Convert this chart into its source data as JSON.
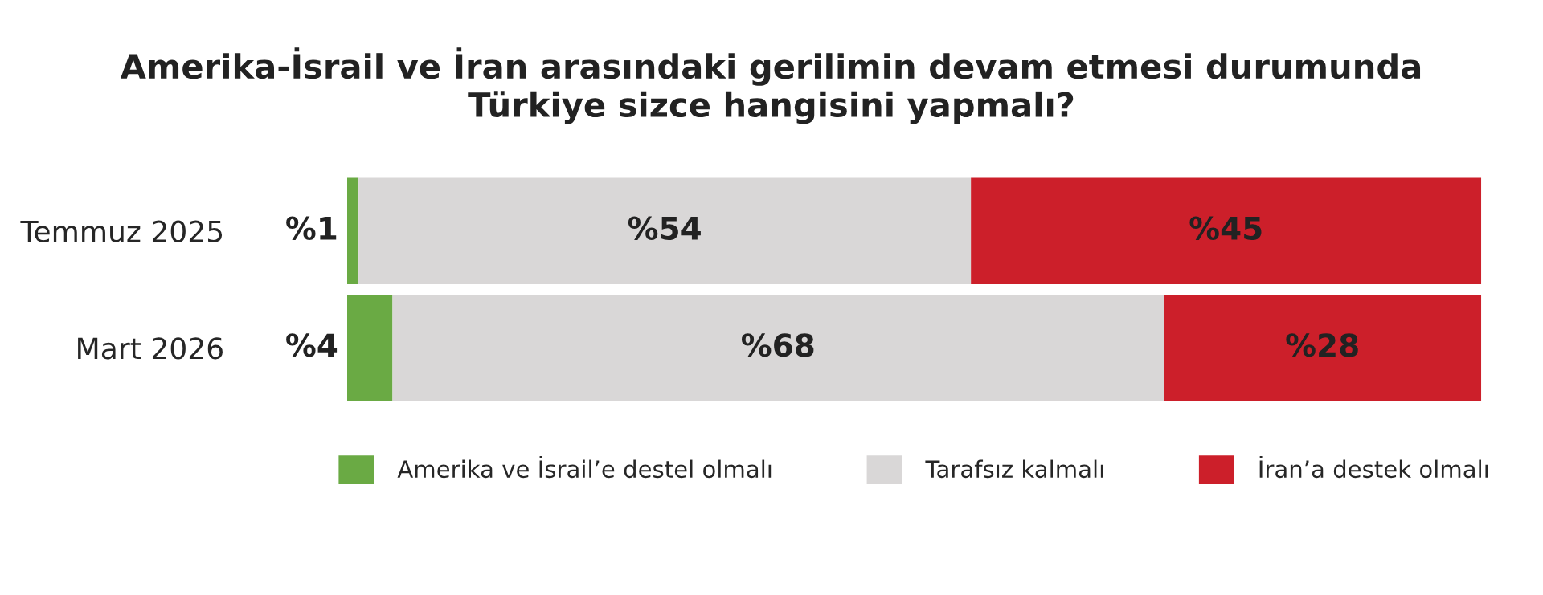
{
  "chart_data": {
    "type": "bar",
    "orientation": "horizontal",
    "stacked": true,
    "title": "Amerika-İsrail ve İran arasındaki gerilimin devam etmesi durumunda\nTürkiye sizce hangisini yapmalı?",
    "categories": [
      "Temmuz 2025",
      "Mart 2026"
    ],
    "xlim": [
      0,
      100
    ],
    "tick_labels": "y",
    "legend": "bottom",
    "grid": false,
    "series": [
      {
        "name": "Amerika ve İsrail’e destel olmalı",
        "color": "#6aaa44",
        "values": [
          1,
          4
        ],
        "value_labels": [
          "%1",
          "%4"
        ]
      },
      {
        "name": "Tarafsız kalmalı",
        "color": "#d9d7d7",
        "values": [
          54,
          68
        ],
        "value_labels": [
          "%54",
          "%68"
        ]
      },
      {
        "name": "İran’a destek olmalı",
        "color": "#cc1f2a",
        "values": [
          45,
          28
        ],
        "value_labels": [
          "%45",
          "%28"
        ]
      }
    ]
  }
}
